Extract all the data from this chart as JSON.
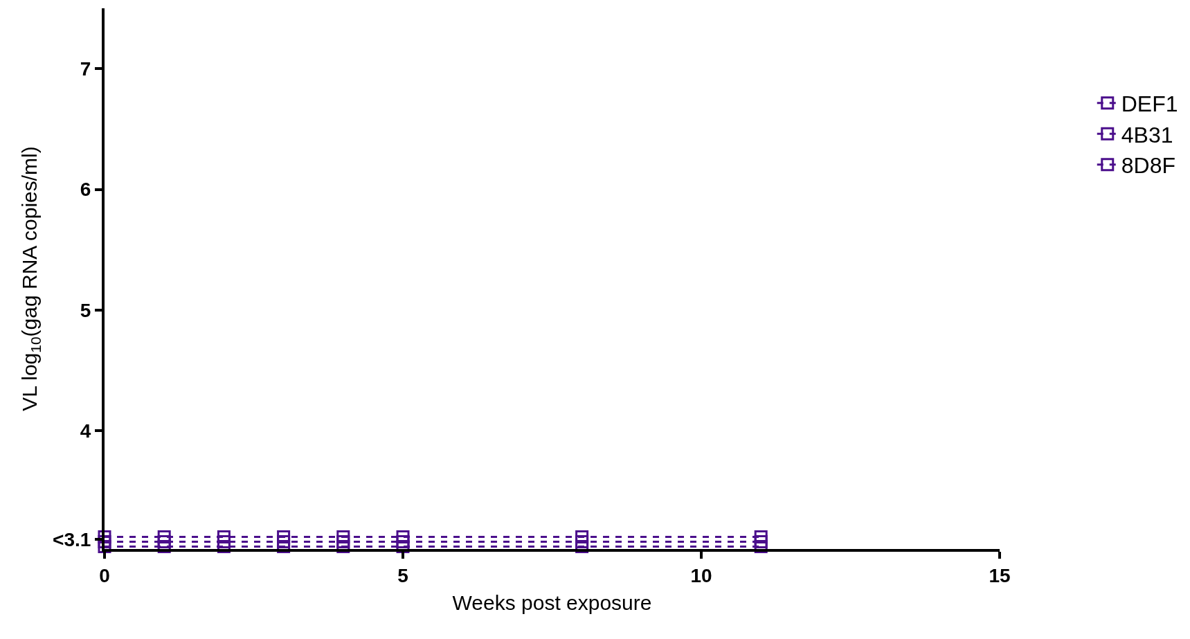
{
  "chart_data": {
    "type": "line",
    "xlabel": "Weeks post exposure",
    "ylabel": "VL log$_{10}$(gag RNA copies/ml)",
    "x": [
      0,
      1,
      2,
      3,
      4,
      5,
      8,
      11
    ],
    "series": [
      {
        "name": "DEF1",
        "color": "#4b0f8c",
        "values": [
          3.12,
          3.12,
          3.12,
          3.12,
          3.12,
          3.12,
          3.12,
          3.12
        ]
      },
      {
        "name": "4B31",
        "color": "#4b0f8c",
        "values": [
          3.08,
          3.08,
          3.08,
          3.08,
          3.08,
          3.08,
          3.08,
          3.08
        ]
      },
      {
        "name": "8D8F",
        "color": "#4b0f8c",
        "values": [
          3.04,
          3.04,
          3.04,
          3.04,
          3.04,
          3.04,
          3.04,
          3.04
        ]
      }
    ],
    "xlim": [
      0,
      15
    ],
    "xticks": [
      0,
      5,
      10,
      15
    ],
    "ylim": [
      3.02,
      7.5
    ],
    "yticks": [
      {
        "value": 3.1,
        "label": "<3.1"
      },
      4,
      5,
      6,
      7
    ],
    "marker": "square",
    "line_style": "dashed",
    "legend": "top right"
  }
}
